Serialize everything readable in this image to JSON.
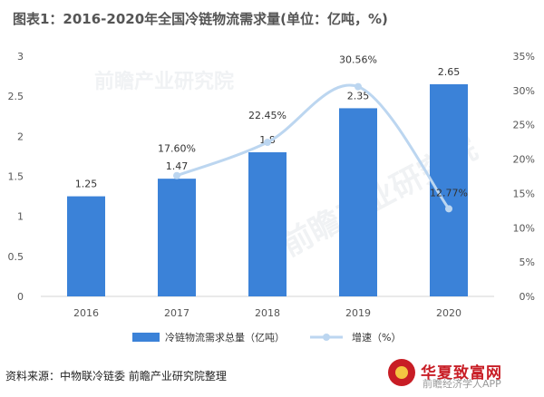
{
  "title": "图表1：2016-2020年全国冷链物流需求量(单位：亿吨，%)",
  "source": "资料来源：中物联冷链委 前瞻产业研究院整理",
  "watermark": "前瞻产业研究院",
  "brand": {
    "name": "华夏致富网",
    "sub": "前瞻经济学人APP"
  },
  "colors": {
    "bar": "#3b82d8",
    "line": "#bcd6f0",
    "axis_text": "#555555"
  },
  "chart_data": {
    "type": "bar",
    "categories": [
      "2016",
      "2017",
      "2018",
      "2019",
      "2020"
    ],
    "series": [
      {
        "name": "冷链物流需求总量（亿吨）",
        "type": "bar",
        "axis": "left",
        "values": [
          1.25,
          1.47,
          1.8,
          2.35,
          2.65
        ],
        "labels": [
          "1.25",
          "1.47",
          "1.8",
          "2.35",
          "2.65"
        ]
      },
      {
        "name": "增速（%）",
        "type": "line",
        "axis": "right",
        "values": [
          null,
          17.6,
          22.45,
          30.56,
          12.77
        ],
        "labels": [
          "",
          "17.60%",
          "22.45%",
          "30.56%",
          "12.77%"
        ]
      }
    ],
    "y_left": {
      "min": 0,
      "max": 3,
      "ticks": [
        "0",
        "0.5",
        "1",
        "1.5",
        "2",
        "2.5",
        "3"
      ]
    },
    "y_right": {
      "min": 0,
      "max": 35,
      "ticks": [
        "0%",
        "5%",
        "10%",
        "15%",
        "20%",
        "25%",
        "30%",
        "35%"
      ]
    },
    "grid": false,
    "legend": "bottom"
  }
}
